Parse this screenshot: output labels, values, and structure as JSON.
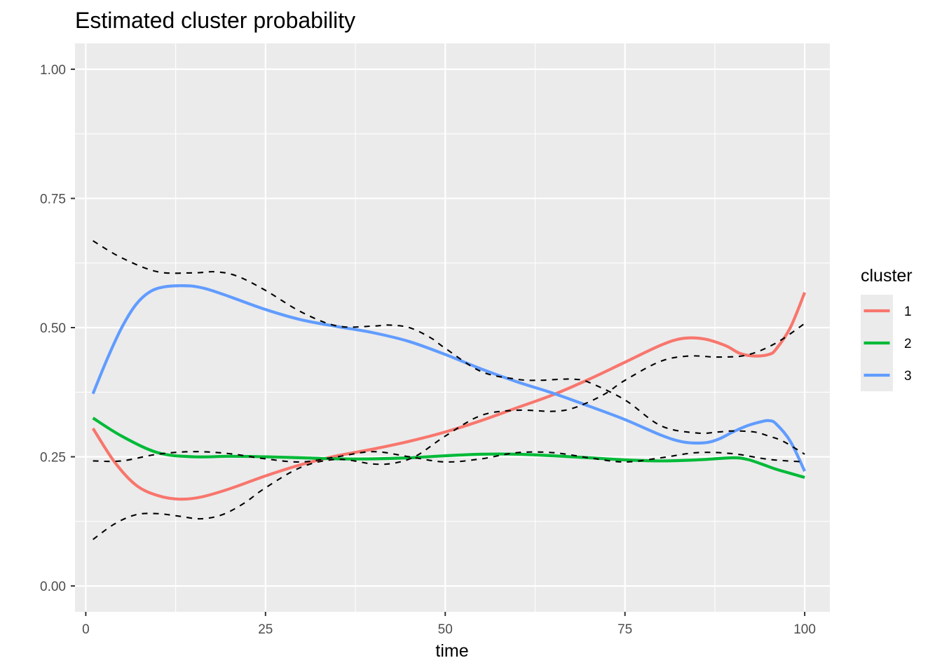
{
  "chart_data": {
    "type": "line",
    "title": "Estimated cluster probability",
    "xlabel": "time",
    "ylabel": "",
    "xlim": [
      -1.5,
      103.5
    ],
    "ylim": [
      -0.05,
      1.05
    ],
    "x_ticks": [
      0,
      25,
      50,
      75,
      100
    ],
    "x_tick_labels": [
      "0",
      "25",
      "50",
      "75",
      "100"
    ],
    "y_ticks": [
      0,
      0.25,
      0.5,
      0.75,
      1.0
    ],
    "y_tick_labels": [
      "0.00",
      "0.25",
      "0.50",
      "0.75",
      "1.00"
    ],
    "grid": true,
    "legend": {
      "title": "cluster",
      "placement": "right"
    },
    "series": [
      {
        "name": "1",
        "color": "#F8766D",
        "style": "solid",
        "x": [
          1,
          4,
          7,
          10,
          13,
          16,
          20,
          25,
          30,
          35,
          40,
          45,
          50,
          55,
          60,
          65,
          70,
          75,
          80,
          83,
          86,
          89,
          91,
          93,
          95,
          96,
          98,
          100
        ],
        "y": [
          0.305,
          0.24,
          0.195,
          0.175,
          0.168,
          0.172,
          0.188,
          0.213,
          0.235,
          0.252,
          0.265,
          0.28,
          0.298,
          0.32,
          0.345,
          0.37,
          0.4,
          0.433,
          0.466,
          0.479,
          0.478,
          0.465,
          0.45,
          0.445,
          0.448,
          0.458,
          0.5,
          0.568
        ]
      },
      {
        "name": "2",
        "color": "#00BA38",
        "style": "solid",
        "x": [
          1,
          5,
          10,
          15,
          20,
          25,
          30,
          35,
          40,
          45,
          50,
          55,
          60,
          65,
          70,
          75,
          80,
          85,
          90,
          92,
          94,
          96,
          98,
          100
        ],
        "y": [
          0.325,
          0.29,
          0.258,
          0.25,
          0.251,
          0.25,
          0.248,
          0.246,
          0.246,
          0.248,
          0.252,
          0.255,
          0.255,
          0.252,
          0.248,
          0.244,
          0.242,
          0.244,
          0.248,
          0.245,
          0.236,
          0.226,
          0.218,
          0.21
        ]
      },
      {
        "name": "3",
        "color": "#619CFF",
        "style": "solid",
        "x": [
          1,
          3,
          5,
          7,
          9,
          11,
          13,
          15,
          17,
          20,
          25,
          30,
          35,
          40,
          45,
          50,
          55,
          60,
          65,
          70,
          75,
          80,
          83,
          86,
          88,
          90,
          92,
          94,
          95,
          96,
          98,
          100
        ],
        "y": [
          0.372,
          0.44,
          0.5,
          0.545,
          0.57,
          0.579,
          0.581,
          0.58,
          0.574,
          0.56,
          0.535,
          0.515,
          0.502,
          0.49,
          0.473,
          0.448,
          0.42,
          0.395,
          0.373,
          0.348,
          0.322,
          0.292,
          0.279,
          0.277,
          0.284,
          0.298,
          0.31,
          0.318,
          0.32,
          0.314,
          0.28,
          0.222
        ]
      },
      {
        "color": "#000000",
        "style": "dashed",
        "x": [
          1,
          5,
          10,
          15,
          18,
          21,
          25,
          30,
          35,
          40,
          42,
          45,
          48,
          50,
          55,
          60,
          63,
          66,
          68,
          70,
          75,
          80,
          85,
          88,
          90,
          93,
          95,
          97,
          100
        ],
        "y": [
          0.668,
          0.635,
          0.608,
          0.606,
          0.608,
          0.6,
          0.572,
          0.53,
          0.503,
          0.503,
          0.505,
          0.5,
          0.48,
          0.46,
          0.415,
          0.4,
          0.398,
          0.4,
          0.4,
          0.394,
          0.36,
          0.31,
          0.296,
          0.298,
          0.3,
          0.298,
          0.29,
          0.28,
          0.255
        ]
      },
      {
        "color": "#000000",
        "style": "dashed",
        "x": [
          1,
          5,
          10,
          15,
          20,
          25,
          30,
          35,
          40,
          45,
          50,
          55,
          60,
          65,
          70,
          75,
          80,
          85,
          90,
          95,
          100
        ],
        "y": [
          0.242,
          0.242,
          0.255,
          0.26,
          0.256,
          0.246,
          0.24,
          0.25,
          0.26,
          0.25,
          0.24,
          0.246,
          0.258,
          0.258,
          0.248,
          0.24,
          0.248,
          0.258,
          0.256,
          0.245,
          0.24
        ]
      },
      {
        "color": "#000000",
        "style": "dashed",
        "x": [
          1,
          4,
          7,
          10,
          13,
          16,
          19,
          22,
          25,
          30,
          35,
          40,
          43,
          46,
          50,
          55,
          60,
          65,
          68,
          72,
          75,
          80,
          84,
          88,
          92,
          96,
          100
        ],
        "y": [
          0.09,
          0.12,
          0.138,
          0.14,
          0.135,
          0.13,
          0.138,
          0.16,
          0.19,
          0.23,
          0.245,
          0.236,
          0.238,
          0.252,
          0.29,
          0.33,
          0.34,
          0.338,
          0.345,
          0.37,
          0.398,
          0.435,
          0.445,
          0.443,
          0.447,
          0.47,
          0.508
        ]
      }
    ]
  }
}
